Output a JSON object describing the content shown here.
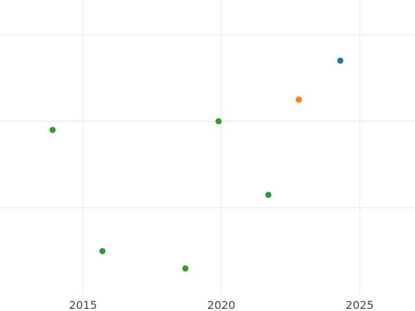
{
  "chart_data": {
    "type": "scatter",
    "title": "",
    "xlabel": "",
    "ylabel": "",
    "xlim": [
      2012,
      2027
    ],
    "ylim": [
      0,
      3.4
    ],
    "x_ticks": [
      2015,
      2020,
      2025
    ],
    "x_tick_labels": [
      "2015",
      "2020",
      "2025"
    ],
    "y_gridlines": [
      1,
      2,
      3
    ],
    "grid": true,
    "legend": "none",
    "series": [
      {
        "color": "#1f77b4",
        "points": [
          {
            "x": 2024.3,
            "y": 2.7
          }
        ]
      },
      {
        "color": "#ff7f0e",
        "points": [
          {
            "x": 2022.8,
            "y": 2.25
          }
        ]
      },
      {
        "color": "#2ca02c",
        "points": [
          {
            "x": 2013.9,
            "y": 1.9
          },
          {
            "x": 2015.7,
            "y": 0.5
          },
          {
            "x": 2018.7,
            "y": 0.3
          },
          {
            "x": 2019.9,
            "y": 2.0
          },
          {
            "x": 2021.7,
            "y": 1.15
          }
        ]
      }
    ]
  }
}
